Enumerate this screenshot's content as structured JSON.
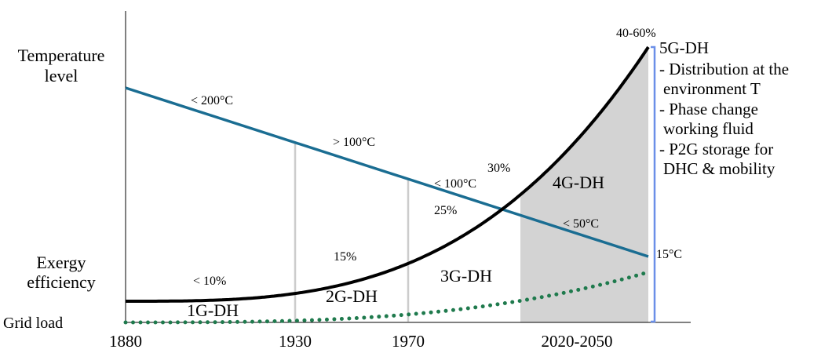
{
  "left_labels": {
    "temperature": [
      "Temperature",
      "level"
    ],
    "exergy": [
      "Exergy",
      "efficiency"
    ],
    "grid": "Grid load"
  },
  "x_ticks": [
    "1880",
    "1930",
    "1970",
    "2020-2050"
  ],
  "generations": {
    "g1": "1G-DH",
    "g2": "2G-DH",
    "g3": "3G-DH",
    "g4": "4G-DH",
    "g5": "5G-DH"
  },
  "temperature_labels": {
    "t1": "< 200°C",
    "t2": "> 100°C",
    "t3": "< 100°C",
    "t4": "< 50°C",
    "t5": "15°C"
  },
  "efficiency_labels": {
    "e1": "< 10%",
    "e2": "15%",
    "e3": "25%",
    "e4": "30%",
    "e5": "40-60%"
  },
  "g5_notes": [
    "- Distribution at the",
    "environment T",
    "- Phase change",
    "working fluid",
    "- P2G storage for",
    "DHC & mobility"
  ],
  "colors": {
    "temperature_line": "#1a6d92",
    "efficiency_curve": "#000000",
    "grid_load": "#1f7a4d",
    "shaded_region": "#d3d3d3",
    "dividers": "#cccccc",
    "bracket": "#6b8fe8"
  }
}
